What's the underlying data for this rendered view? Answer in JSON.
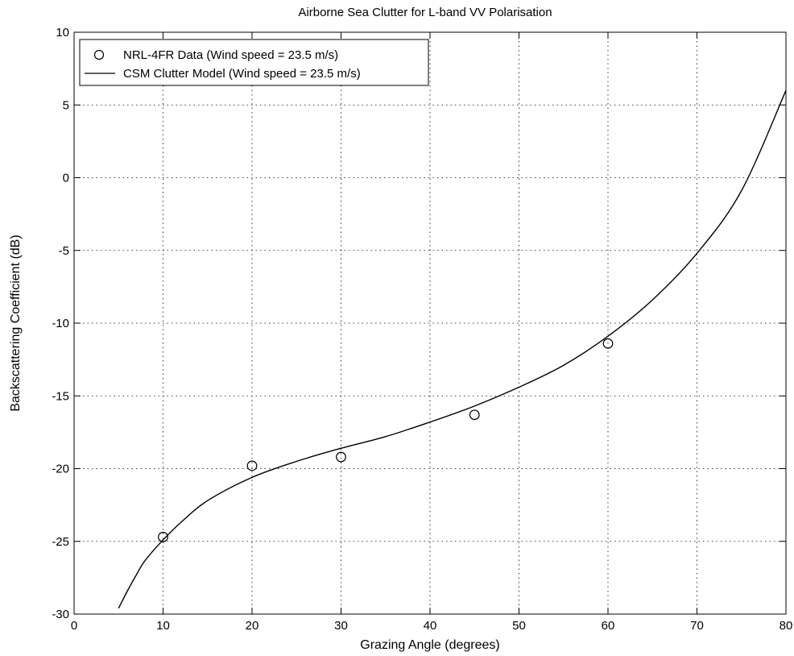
{
  "chart_data": {
    "type": "line",
    "title": "Airborne Sea Clutter for L-band VV Polarisation",
    "xlabel": "Grazing Angle (degrees)",
    "ylabel": "Backscattering Coefficient (dB)",
    "xlim": [
      0,
      80
    ],
    "ylim": [
      -30,
      10
    ],
    "x_ticks": [
      0,
      10,
      20,
      30,
      40,
      50,
      60,
      70,
      80
    ],
    "y_ticks": [
      -30,
      -25,
      -20,
      -15,
      -10,
      -5,
      0,
      5,
      10
    ],
    "grid": true,
    "legend_position": "top-left",
    "series": [
      {
        "name": "NRL-4FR Data (Wind speed = 23.5 m/s)",
        "style": "markers",
        "marker": "circle-open",
        "color": "#000000",
        "x": [
          10,
          20,
          30,
          45,
          60
        ],
        "y": [
          -24.7,
          -19.8,
          -19.2,
          -16.3,
          -11.4
        ]
      },
      {
        "name": "CSM Clutter Model (Wind speed = 23.5 m/s)",
        "style": "line",
        "color": "#000000",
        "x": [
          5,
          6,
          7,
          8,
          10,
          12,
          15,
          20,
          25,
          30,
          35,
          40,
          45,
          50,
          55,
          60,
          65,
          70,
          75,
          80
        ],
        "y": [
          -29.6,
          -28.4,
          -27.3,
          -26.3,
          -24.9,
          -23.7,
          -22.2,
          -20.6,
          -19.5,
          -18.6,
          -17.8,
          -16.8,
          -15.7,
          -14.4,
          -12.9,
          -10.9,
          -8.4,
          -5.2,
          -0.9,
          6.0
        ]
      }
    ]
  }
}
